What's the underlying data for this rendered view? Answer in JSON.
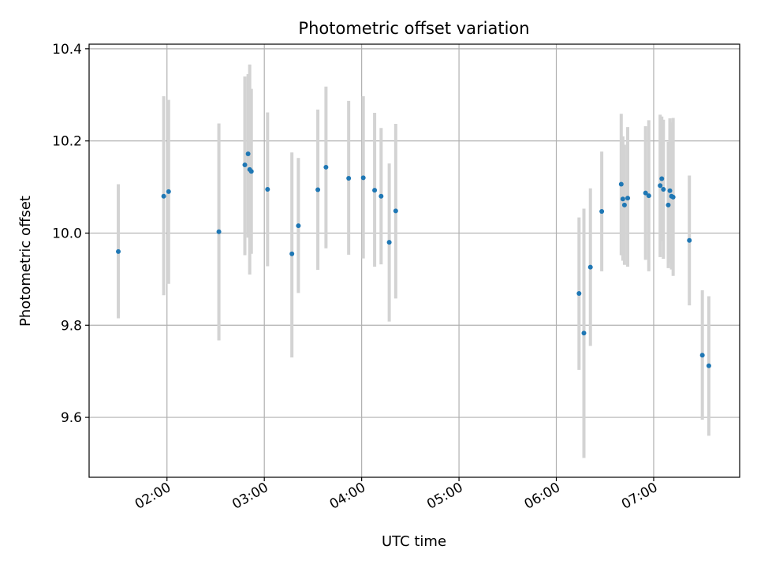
{
  "chart_data": {
    "type": "scatter",
    "title": "Photometric offset variation",
    "xlabel": "UTC time",
    "ylabel": "Photometric offset",
    "x_is_time": true,
    "xlim": [
      "01:12",
      "07:53"
    ],
    "ylim": [
      9.47,
      10.41
    ],
    "x_ticks": [
      "02:00",
      "03:00",
      "04:00",
      "05:00",
      "06:00",
      "07:00"
    ],
    "y_ticks": [
      9.6,
      9.8,
      10.0,
      10.2,
      10.4
    ],
    "y_tick_labels": [
      "9.6",
      "9.8",
      "10.0",
      "10.2",
      "10.4"
    ],
    "grid": true,
    "colors": {
      "point": "#1f77b4",
      "errorbar": "#d3d3d3",
      "grid": "#b0b0b0"
    },
    "points": [
      {
        "x": "01:30",
        "y": 9.96,
        "ylo": 9.815,
        "yhi": 10.106
      },
      {
        "x": "01:58",
        "y": 10.08,
        "ylo": 9.865,
        "yhi": 10.297
      },
      {
        "x": "02:01",
        "y": 10.09,
        "ylo": 9.89,
        "yhi": 10.289
      },
      {
        "x": "02:32",
        "y": 10.003,
        "ylo": 9.767,
        "yhi": 10.238
      },
      {
        "x": "02:48",
        "y": 10.148,
        "ylo": 9.952,
        "yhi": 10.34
      },
      {
        "x": "02:50",
        "y": 10.172,
        "ylo": 9.99,
        "yhi": 10.345
      },
      {
        "x": "02:51",
        "y": 10.138,
        "ylo": 9.91,
        "yhi": 10.366
      },
      {
        "x": "02:52",
        "y": 10.134,
        "ylo": 9.955,
        "yhi": 10.313
      },
      {
        "x": "03:02",
        "y": 10.095,
        "ylo": 9.928,
        "yhi": 10.262
      },
      {
        "x": "03:17",
        "y": 9.955,
        "ylo": 9.73,
        "yhi": 10.175
      },
      {
        "x": "03:21",
        "y": 10.016,
        "ylo": 9.87,
        "yhi": 10.163
      },
      {
        "x": "03:33",
        "y": 10.094,
        "ylo": 9.92,
        "yhi": 10.268
      },
      {
        "x": "03:38",
        "y": 10.143,
        "ylo": 9.967,
        "yhi": 10.318
      },
      {
        "x": "03:52",
        "y": 10.119,
        "ylo": 9.953,
        "yhi": 10.287
      },
      {
        "x": "04:01",
        "y": 10.12,
        "ylo": 9.945,
        "yhi": 10.297
      },
      {
        "x": "04:08",
        "y": 10.093,
        "ylo": 9.927,
        "yhi": 10.261
      },
      {
        "x": "04:12",
        "y": 10.08,
        "ylo": 9.932,
        "yhi": 10.228
      },
      {
        "x": "04:17",
        "y": 9.98,
        "ylo": 9.808,
        "yhi": 10.151
      },
      {
        "x": "04:21",
        "y": 10.048,
        "ylo": 9.858,
        "yhi": 10.237
      },
      {
        "x": "06:14",
        "y": 9.869,
        "ylo": 9.703,
        "yhi": 10.034
      },
      {
        "x": "06:17",
        "y": 9.783,
        "ylo": 9.512,
        "yhi": 10.053
      },
      {
        "x": "06:21",
        "y": 9.926,
        "ylo": 9.755,
        "yhi": 10.097
      },
      {
        "x": "06:28",
        "y": 10.047,
        "ylo": 9.917,
        "yhi": 10.177
      },
      {
        "x": "06:40",
        "y": 10.106,
        "ylo": 9.952,
        "yhi": 10.259
      },
      {
        "x": "06:41",
        "y": 10.074,
        "ylo": 9.94,
        "yhi": 10.21
      },
      {
        "x": "06:42",
        "y": 10.061,
        "ylo": 9.931,
        "yhi": 10.192
      },
      {
        "x": "06:44",
        "y": 10.076,
        "ylo": 9.927,
        "yhi": 10.23
      },
      {
        "x": "06:55",
        "y": 10.087,
        "ylo": 9.942,
        "yhi": 10.232
      },
      {
        "x": "06:57",
        "y": 10.081,
        "ylo": 9.917,
        "yhi": 10.245
      },
      {
        "x": "07:04",
        "y": 10.103,
        "ylo": 9.948,
        "yhi": 10.257
      },
      {
        "x": "07:05",
        "y": 10.118,
        "ylo": 9.983,
        "yhi": 10.253
      },
      {
        "x": "07:06",
        "y": 10.095,
        "ylo": 9.944,
        "yhi": 10.246
      },
      {
        "x": "07:09",
        "y": 10.061,
        "ylo": 9.924,
        "yhi": 10.198
      },
      {
        "x": "07:10",
        "y": 10.092,
        "ylo": 9.935,
        "yhi": 10.249
      },
      {
        "x": "07:11",
        "y": 10.08,
        "ylo": 9.921,
        "yhi": 10.24
      },
      {
        "x": "07:12",
        "y": 10.078,
        "ylo": 9.907,
        "yhi": 10.25
      },
      {
        "x": "07:22",
        "y": 9.984,
        "ylo": 9.843,
        "yhi": 10.125
      },
      {
        "x": "07:30",
        "y": 9.735,
        "ylo": 9.595,
        "yhi": 9.876
      },
      {
        "x": "07:34",
        "y": 9.712,
        "ylo": 9.56,
        "yhi": 9.863
      }
    ]
  }
}
